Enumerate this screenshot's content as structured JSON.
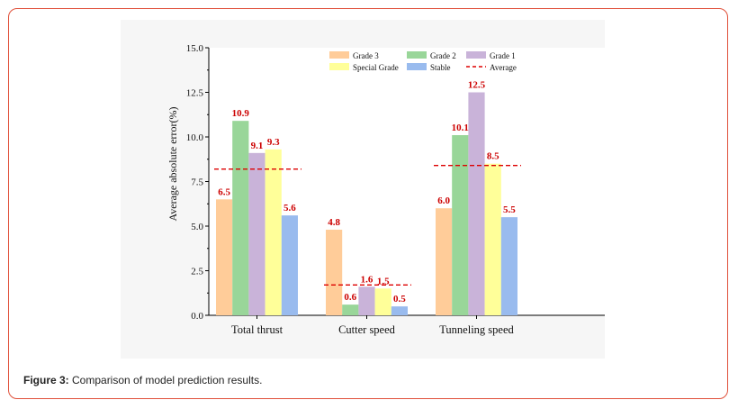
{
  "figure": {
    "caption_label": "Figure 3:",
    "caption_text": " Comparison of model prediction results."
  },
  "colors": {
    "grade3": "#ffcc99",
    "grade2": "#99d699",
    "grade1": "#c9b3d9",
    "special": "#ffff99",
    "stable": "#99bbee",
    "average": "#dd0000",
    "label": "#cc0000"
  },
  "chart_data": {
    "type": "bar",
    "ylabel": "Average absolute error(%)",
    "xlabel": "",
    "title": "",
    "ylim": [
      0,
      15
    ],
    "yticks": [
      "0.0",
      "2.5",
      "5.0",
      "7.5",
      "10.0",
      "12.5",
      "15.0"
    ],
    "categories": [
      "Total thrust",
      "Cutter speed",
      "Tunneling speed"
    ],
    "series": [
      {
        "name": "Grade 3",
        "color_key": "grade3",
        "values": [
          6.5,
          4.8,
          6.0
        ],
        "labels": [
          "6.5",
          "4.8",
          "6.0"
        ]
      },
      {
        "name": "Grade 2",
        "color_key": "grade2",
        "values": [
          10.9,
          0.6,
          10.1
        ],
        "labels": [
          "10.9",
          "0.6",
          "10.1"
        ]
      },
      {
        "name": "Grade 1",
        "color_key": "grade1",
        "values": [
          9.1,
          1.6,
          12.5
        ],
        "labels": [
          "9.1",
          "1.6",
          "12.5"
        ]
      },
      {
        "name": "Special Grade",
        "color_key": "special",
        "values": [
          9.3,
          1.5,
          8.5
        ],
        "labels": [
          "9.3",
          "1.5",
          "8.5"
        ]
      },
      {
        "name": "Stable",
        "color_key": "stable",
        "values": [
          5.6,
          0.5,
          5.5
        ],
        "labels": [
          "5.6",
          "0.5",
          "5.5"
        ]
      }
    ],
    "average": {
      "name": "Average",
      "values": [
        8.2,
        1.7,
        8.4
      ]
    },
    "legend_position": "top-right",
    "grid": false
  }
}
